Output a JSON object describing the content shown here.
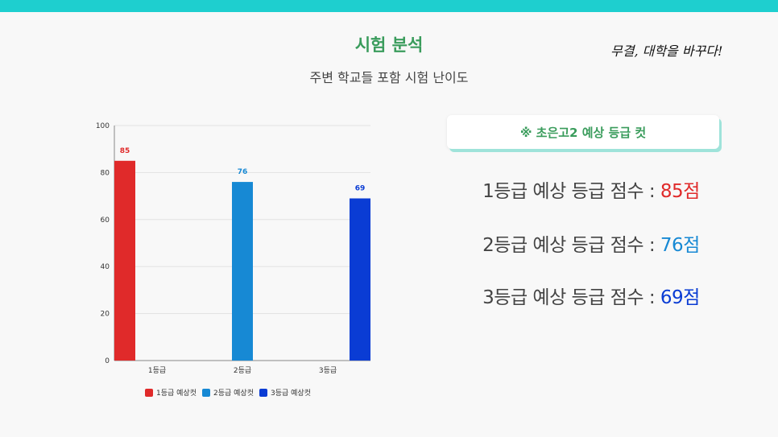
{
  "header": {
    "title": "시험 분석",
    "subtitle": "주변 학교들 포함 시험 난이도",
    "slogan": "무결, 대학을 바꾸다!"
  },
  "badge": {
    "text": "※ 초은고2 예상 등급 컷"
  },
  "scores": [
    {
      "label": "1등급 예상 등급 점수 :",
      "value": "85점",
      "color": "#e02a2a"
    },
    {
      "label": "2등급 예상 등급 점수 :",
      "value": "76점",
      "color": "#1789d4"
    },
    {
      "label": "3등급 예상 등급 점수 :",
      "value": "69점",
      "color": "#0a3cd4"
    }
  ],
  "chart_data": {
    "type": "bar",
    "categories": [
      "1등급",
      "2등급",
      "3등급"
    ],
    "series": [
      {
        "name": "1등급 예상컷",
        "values": [
          85,
          null,
          null
        ],
        "color": "#e02a2a"
      },
      {
        "name": "2등급 예상컷",
        "values": [
          null,
          76,
          null
        ],
        "color": "#1789d4"
      },
      {
        "name": "3등급 예상컷",
        "values": [
          null,
          null,
          69
        ],
        "color": "#0a3cd4"
      }
    ],
    "yticks": [
      0,
      20,
      40,
      60,
      80,
      100
    ],
    "ylim": [
      0,
      100
    ],
    "grid": true,
    "legend_position": "bottom"
  }
}
